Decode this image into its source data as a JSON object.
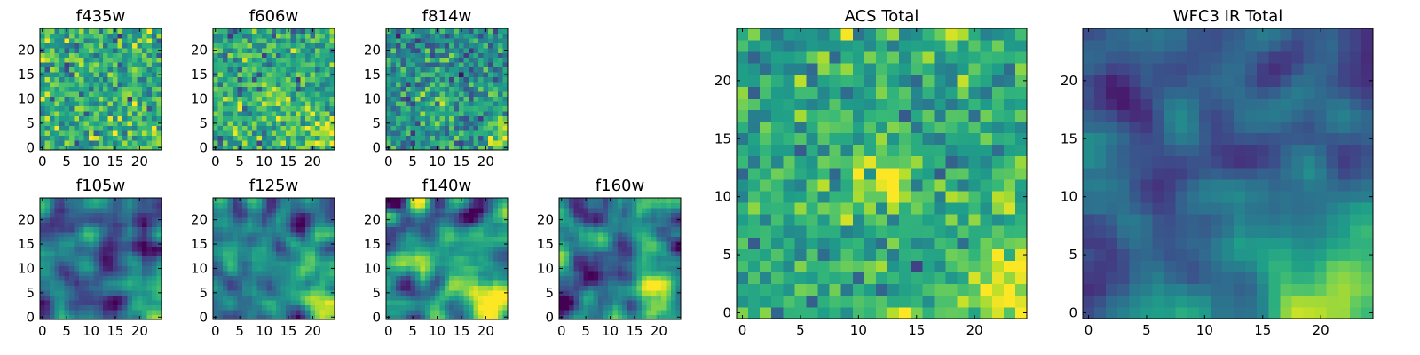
{
  "figure": {
    "background": "#ffffff"
  },
  "colormap": {
    "name": "viridis",
    "stops": [
      "#440154",
      "#482878",
      "#3e4989",
      "#31688e",
      "#26828e",
      "#1f9e89",
      "#35b779",
      "#6ece58",
      "#b5de2b",
      "#fde725"
    ]
  },
  "chart_data": [
    {
      "type": "heatmap",
      "title": "f435w",
      "grid": [
        25,
        25
      ],
      "xticks": [
        "0",
        "5",
        "10",
        "15",
        "20"
      ],
      "yticks": [
        "0",
        "5",
        "10",
        "15",
        "20"
      ],
      "xlim": [
        -0.5,
        24.5
      ],
      "ylim": [
        -0.5,
        24.5
      ],
      "texture": "noise",
      "noise_mean": 0.62,
      "noise_sd": 0.16,
      "hotspots": [
        {
          "x": 24,
          "y": 2,
          "sigma": 2.5,
          "strength": 0.25
        }
      ],
      "seed": 11
    },
    {
      "type": "heatmap",
      "title": "f606w",
      "grid": [
        25,
        25
      ],
      "xticks": [
        "0",
        "5",
        "10",
        "15",
        "20"
      ],
      "yticks": [
        "0",
        "5",
        "10",
        "15",
        "20"
      ],
      "xlim": [
        -0.5,
        24.5
      ],
      "ylim": [
        -0.5,
        24.5
      ],
      "texture": "noise",
      "noise_mean": 0.6,
      "noise_sd": 0.15,
      "hotspots": [
        {
          "x": 12,
          "y": 10,
          "sigma": 2.5,
          "strength": 0.2
        },
        {
          "x": 23,
          "y": 3,
          "sigma": 3,
          "strength": 0.3
        }
      ],
      "seed": 23
    },
    {
      "type": "heatmap",
      "title": "f814w",
      "grid": [
        25,
        25
      ],
      "xticks": [
        "0",
        "5",
        "10",
        "15",
        "20"
      ],
      "yticks": [
        "0",
        "5",
        "10",
        "15",
        "20"
      ],
      "xlim": [
        -0.5,
        24.5
      ],
      "ylim": [
        -0.5,
        24.5
      ],
      "texture": "noise",
      "noise_mean": 0.5,
      "noise_sd": 0.15,
      "hotspots": [
        {
          "x": 24,
          "y": 3,
          "sigma": 2.5,
          "strength": 0.4
        },
        {
          "x": 10,
          "y": 7,
          "sigma": 3,
          "strength": 0.15
        }
      ],
      "seed": 37
    },
    {
      "type": "heatmap",
      "title": "f105w",
      "grid": [
        25,
        25
      ],
      "xticks": [
        "0",
        "5",
        "10",
        "15",
        "20"
      ],
      "yticks": [
        "0",
        "5",
        "10",
        "15",
        "20"
      ],
      "xlim": [
        -0.5,
        24.5
      ],
      "ylim": [
        -0.5,
        24.5
      ],
      "texture": "smooth",
      "noise_mean": 0.32,
      "noise_sd": 0.13,
      "hotspots": [
        {
          "x": 23,
          "y": 2,
          "sigma": 4,
          "strength": 0.55
        }
      ],
      "seed": 41
    },
    {
      "type": "heatmap",
      "title": "f125w",
      "grid": [
        25,
        25
      ],
      "xticks": [
        "0",
        "5",
        "10",
        "15",
        "20"
      ],
      "yticks": [
        "0",
        "5",
        "10",
        "15",
        "20"
      ],
      "xlim": [
        -0.5,
        24.5
      ],
      "ylim": [
        -0.5,
        24.5
      ],
      "texture": "smooth",
      "noise_mean": 0.42,
      "noise_sd": 0.13,
      "hotspots": [
        {
          "x": 22,
          "y": 3,
          "sigma": 4,
          "strength": 0.5
        }
      ],
      "seed": 53
    },
    {
      "type": "heatmap",
      "title": "f140w",
      "grid": [
        25,
        25
      ],
      "xticks": [
        "0",
        "5",
        "10",
        "15",
        "20"
      ],
      "yticks": [
        "0",
        "5",
        "10",
        "15",
        "20"
      ],
      "xlim": [
        -0.5,
        24.5
      ],
      "ylim": [
        -0.5,
        24.5
      ],
      "texture": "smooth",
      "noise_mean": 0.4,
      "noise_sd": 0.14,
      "hotspots": [
        {
          "x": 21,
          "y": 3,
          "sigma": 4,
          "strength": 0.5
        }
      ],
      "seed": 67
    },
    {
      "type": "heatmap",
      "title": "f160w",
      "grid": [
        25,
        25
      ],
      "xticks": [
        "0",
        "5",
        "10",
        "15",
        "20"
      ],
      "yticks": [
        "0",
        "5",
        "10",
        "15",
        "20"
      ],
      "xlim": [
        -0.5,
        24.5
      ],
      "ylim": [
        -0.5,
        24.5
      ],
      "texture": "smooth",
      "noise_mean": 0.4,
      "noise_sd": 0.14,
      "hotspots": [
        {
          "x": 22,
          "y": 4,
          "sigma": 4,
          "strength": 0.5
        }
      ],
      "seed": 79
    },
    {
      "type": "heatmap",
      "title": "ACS Total",
      "grid": [
        25,
        25
      ],
      "xticks": [
        "0",
        "5",
        "10",
        "15",
        "20"
      ],
      "yticks": [
        "0",
        "5",
        "10",
        "15",
        "20"
      ],
      "xlim": [
        -0.5,
        24.5
      ],
      "ylim": [
        -0.5,
        24.5
      ],
      "texture": "noise",
      "noise_mean": 0.6,
      "noise_sd": 0.14,
      "hotspots": [
        {
          "x": 12,
          "y": 11,
          "sigma": 2,
          "strength": 0.3
        },
        {
          "x": 23,
          "y": 2,
          "sigma": 3,
          "strength": 0.3
        }
      ],
      "seed": 97
    },
    {
      "type": "heatmap",
      "title": "WFC3 IR Total",
      "grid": [
        25,
        25
      ],
      "xticks": [
        "0",
        "5",
        "10",
        "15",
        "20"
      ],
      "yticks": [
        "0",
        "5",
        "10",
        "15",
        "20"
      ],
      "xlim": [
        -0.5,
        24.5
      ],
      "ylim": [
        -0.5,
        24.5
      ],
      "texture": "smooth",
      "noise_mean": 0.3,
      "noise_sd": 0.08,
      "hotspots": [
        {
          "x": 23,
          "y": 2,
          "sigma": 5,
          "strength": 0.6
        },
        {
          "x": 12,
          "y": 12,
          "sigma": 3,
          "strength": 0.1
        }
      ],
      "seed": 113
    }
  ]
}
